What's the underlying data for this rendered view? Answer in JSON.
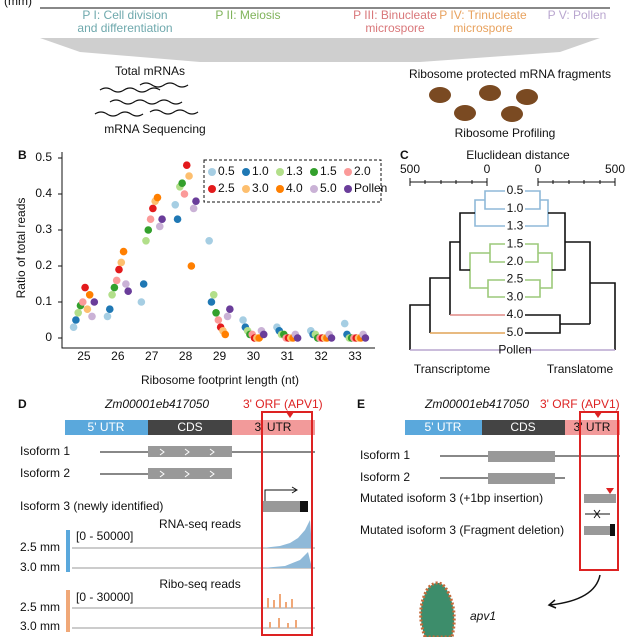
{
  "top": {
    "unit": "(mm)",
    "phases": [
      {
        "lines": [
          "P I: Cell division",
          "and differentiation"
        ],
        "color": "#6fa9ad"
      },
      {
        "lines": [
          "P II: Meiosis"
        ],
        "color": "#7fb35a"
      },
      {
        "lines": [
          "P III: Binucleate",
          "microspore"
        ],
        "color": "#d9777a"
      },
      {
        "lines": [
          "P IV: Trinucleate",
          "microspore"
        ],
        "color": "#e8a25e"
      },
      {
        "lines": [
          "P V: Pollen"
        ],
        "color": "#b9a6cf"
      }
    ],
    "mrna": {
      "title": "Total mRNAs",
      "method": "mRNA Sequencing"
    },
    "ribo": {
      "title": "Ribosome protected mRNA fragments",
      "method": "Ribosome Profiling"
    }
  },
  "panel_b": {
    "label": "B"
  },
  "chart_data": {
    "type": "strip",
    "x_label": "Ribosome footprint length (nt)",
    "y_label": "Ratio of total reads",
    "categories": [
      "25",
      "26",
      "27",
      "28",
      "29",
      "30",
      "31",
      "32",
      "33"
    ],
    "ylim": [
      0,
      0.5
    ],
    "yticks": [
      0,
      0.1,
      0.2,
      0.3,
      0.4,
      0.5
    ],
    "legend": "upper right",
    "series": [
      {
        "name": "0.5",
        "color": "#a6cee3",
        "values": [
          0.03,
          0.06,
          0.1,
          0.37,
          0.27,
          0.05,
          0.03,
          0.02,
          0.04
        ]
      },
      {
        "name": "1.0",
        "color": "#1f78b4",
        "values": [
          0.05,
          0.08,
          0.15,
          0.33,
          0.1,
          0.03,
          0.02,
          0.01,
          0.01
        ]
      },
      {
        "name": "1.3",
        "color": "#b2df8a",
        "values": [
          0.07,
          0.12,
          0.27,
          0.42,
          0.12,
          0.02,
          0.01,
          0.01,
          0
        ]
      },
      {
        "name": "1.5",
        "color": "#33a02c",
        "values": [
          0.09,
          0.14,
          0.3,
          0.43,
          0.07,
          0.01,
          0.01,
          0,
          0
        ]
      },
      {
        "name": "2.0",
        "color": "#fb9a99",
        "values": [
          0.1,
          0.16,
          0.33,
          0.4,
          0.05,
          0.01,
          0,
          0,
          0
        ]
      },
      {
        "name": "2.5",
        "color": "#e31a1c",
        "values": [
          0.14,
          0.19,
          0.36,
          0.48,
          0.03,
          0,
          0,
          0,
          0
        ]
      },
      {
        "name": "3.0",
        "color": "#fdbf6f",
        "values": [
          0.08,
          0.21,
          0.38,
          0.45,
          0.02,
          0,
          0,
          0,
          0
        ]
      },
      {
        "name": "4.0",
        "color": "#ff7f00",
        "values": [
          0.12,
          0.24,
          0.39,
          0.2,
          0.01,
          0,
          0,
          0,
          0
        ]
      },
      {
        "name": "5.0",
        "color": "#cab2d6",
        "values": [
          0.06,
          0.15,
          0.31,
          0.36,
          0.06,
          0.02,
          0.01,
          0.01,
          0.01
        ]
      },
      {
        "name": "Pollen",
        "color": "#6a3d9a",
        "values": [
          0.1,
          0.13,
          0.33,
          0.38,
          0.08,
          0.01,
          0,
          0,
          0
        ]
      }
    ]
  },
  "panel_c": {
    "label": "C",
    "axis_title": "Eluclidean distance",
    "left_ticks": [
      500,
      0
    ],
    "right_ticks": [
      0,
      500
    ],
    "leaves": [
      "0.5",
      "1.0",
      "1.3",
      "1.5",
      "2.0",
      "2.5",
      "3.0",
      "4.0",
      "5.0",
      "Pollen"
    ],
    "left_title": "Transcriptome",
    "right_title": "Translatome"
  },
  "panel_d": {
    "label": "D",
    "gene": "Zm00001eb417050",
    "orf": "3' ORF (APV1)",
    "regions": [
      "5' UTR",
      "CDS",
      "3' UTR"
    ],
    "isoforms": [
      "Isoform 1",
      "Isoform 2",
      "Isoform 3 (newly identified)"
    ],
    "rna_title": "RNA-seq reads",
    "rna_range": "[0 - 50000]",
    "ribo_title": "Ribo-seq reads",
    "ribo_range": "[0 - 30000]",
    "tracks": [
      "2.5 mm",
      "3.0 mm"
    ]
  },
  "panel_e": {
    "label": "E",
    "gene": "Zm00001eb417050",
    "orf": "3' ORF (APV1)",
    "regions": [
      "5' UTR",
      "CDS",
      "3' UTR"
    ],
    "isoforms": [
      "Isoform 1",
      "Isoform 2",
      "Mutated isoform 3 (+1bp insertion)",
      "Mutated isoform 3 (Fragment deletion)"
    ],
    "mutant": "apv1"
  }
}
